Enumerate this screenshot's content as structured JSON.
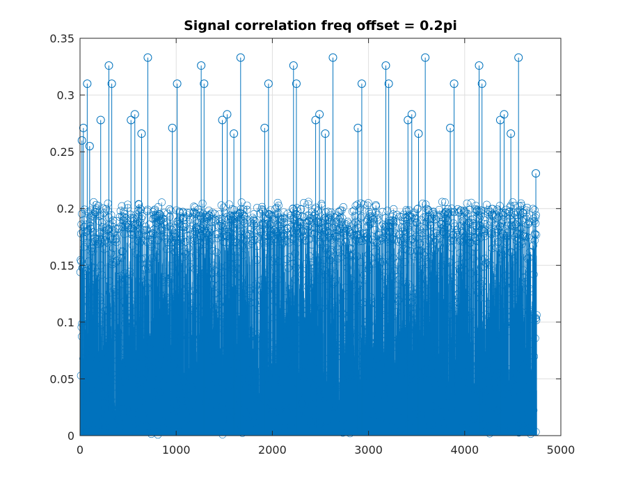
{
  "chart_data": {
    "type": "stem",
    "title": "Signal correlation freq offset = 0.2pi",
    "xlabel": "",
    "ylabel": "",
    "xlim": [
      0,
      5000
    ],
    "ylim": [
      0,
      0.35
    ],
    "xticks": [
      0,
      1000,
      2000,
      3000,
      4000,
      5000
    ],
    "xtick_labels": [
      "0",
      "1000",
      "2000",
      "3000",
      "4000",
      "5000"
    ],
    "yticks": [
      0,
      0.05,
      0.1,
      0.15,
      0.2,
      0.25,
      0.3,
      0.35
    ],
    "ytick_labels": [
      "0",
      "0.05",
      "0.1",
      "0.15",
      "0.2",
      "0.25",
      "0.3",
      "0.35"
    ],
    "grid": true,
    "series_color": "#0072BD",
    "marker": "circle",
    "n_samples": 4750,
    "x_range": [
      1,
      4750
    ],
    "periodic_structure": "approximately repeating peak pattern with period ~460 samples",
    "notable_peaks": [
      {
        "x": 75,
        "y": 0.31
      },
      {
        "x": 300,
        "y": 0.326
      },
      {
        "x": 330,
        "y": 0.31
      },
      {
        "x": 705,
        "y": 0.333
      },
      {
        "x": 1010,
        "y": 0.31
      },
      {
        "x": 1260,
        "y": 0.326
      },
      {
        "x": 1290,
        "y": 0.31
      },
      {
        "x": 1670,
        "y": 0.333
      },
      {
        "x": 1960,
        "y": 0.31
      },
      {
        "x": 2220,
        "y": 0.326
      },
      {
        "x": 2250,
        "y": 0.31
      },
      {
        "x": 2630,
        "y": 0.333
      },
      {
        "x": 2930,
        "y": 0.31
      },
      {
        "x": 3180,
        "y": 0.326
      },
      {
        "x": 3210,
        "y": 0.31
      },
      {
        "x": 3590,
        "y": 0.333
      },
      {
        "x": 3890,
        "y": 0.31
      },
      {
        "x": 4150,
        "y": 0.326
      },
      {
        "x": 4180,
        "y": 0.31
      },
      {
        "x": 4560,
        "y": 0.333
      },
      {
        "x": 4740,
        "y": 0.231
      }
    ],
    "secondary_peaks": [
      {
        "x": 20,
        "y": 0.26
      },
      {
        "x": 35,
        "y": 0.271
      },
      {
        "x": 100,
        "y": 0.255
      },
      {
        "x": 215,
        "y": 0.278
      },
      {
        "x": 530,
        "y": 0.278
      },
      {
        "x": 570,
        "y": 0.283
      },
      {
        "x": 640,
        "y": 0.266
      },
      {
        "x": 960,
        "y": 0.271
      },
      {
        "x": 1480,
        "y": 0.278
      },
      {
        "x": 1530,
        "y": 0.283
      },
      {
        "x": 1600,
        "y": 0.266
      },
      {
        "x": 1920,
        "y": 0.271
      },
      {
        "x": 2450,
        "y": 0.278
      },
      {
        "x": 2490,
        "y": 0.283
      },
      {
        "x": 2550,
        "y": 0.266
      },
      {
        "x": 2890,
        "y": 0.271
      },
      {
        "x": 3410,
        "y": 0.278
      },
      {
        "x": 3450,
        "y": 0.283
      },
      {
        "x": 3520,
        "y": 0.266
      },
      {
        "x": 3850,
        "y": 0.271
      },
      {
        "x": 4370,
        "y": 0.278
      },
      {
        "x": 4410,
        "y": 0.283
      },
      {
        "x": 4480,
        "y": 0.266
      }
    ],
    "envelope": {
      "dense_fill_top_approx": 0.2,
      "min_value": 0
    }
  }
}
